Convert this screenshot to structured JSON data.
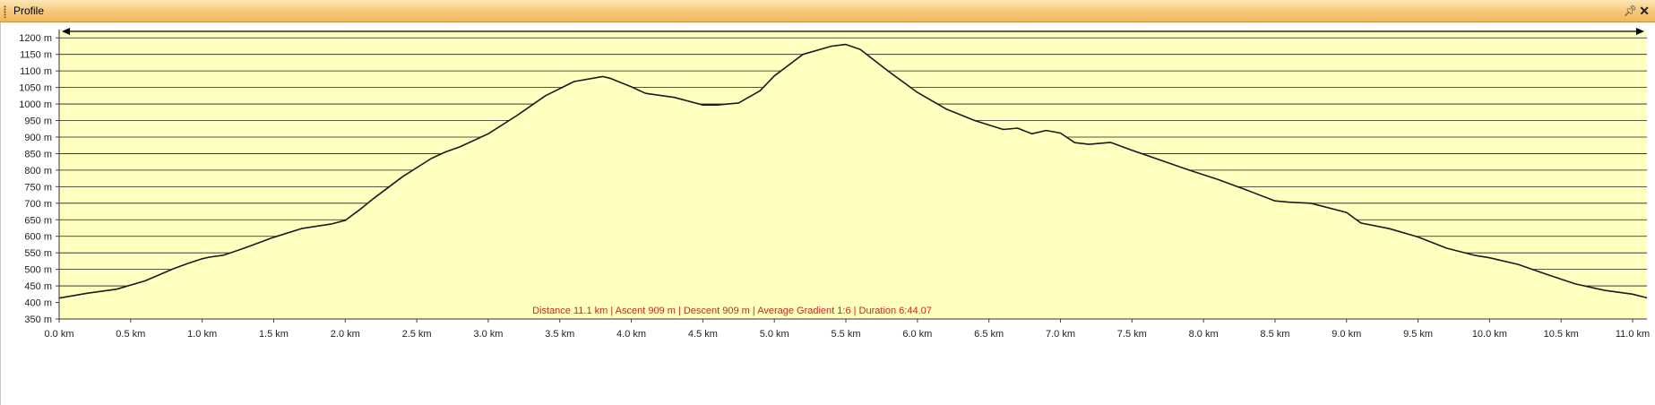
{
  "window": {
    "title": "Profile",
    "pin_icon": "pin-icon",
    "close_icon": "close-icon"
  },
  "chart_data": {
    "type": "area",
    "title": "",
    "xlabel": "",
    "ylabel": "",
    "xlim": [
      0,
      11.1
    ],
    "ylim": [
      350,
      1225
    ],
    "grid": true,
    "fill_color": "#ffffc0",
    "line_color": "#1a1a1a",
    "x_tick_labels": [
      "0.0 km",
      "0.5 km",
      "1.0 km",
      "1.5 km",
      "2.0 km",
      "2.5 km",
      "3.0 km",
      "3.5 km",
      "4.0 km",
      "4.5 km",
      "5.0 km",
      "5.5 km",
      "6.0 km",
      "6.5 km",
      "7.0 km",
      "7.5 km",
      "8.0 km",
      "8.5 km",
      "9.0 km",
      "9.5 km",
      "10.0 km",
      "10.5 km",
      "11.0 km"
    ],
    "y_tick_labels": [
      "350 m",
      "400 m",
      "450 m",
      "500 m",
      "550 m",
      "600 m",
      "650 m",
      "700 m",
      "750 m",
      "800 m",
      "850 m",
      "900 m",
      "950 m",
      "1000 m",
      "1050 m",
      "1100 m",
      "1150 m",
      "1200 m"
    ],
    "x": [
      0,
      0.2,
      0.4,
      0.6,
      0.8,
      0.9,
      1.0,
      1.05,
      1.15,
      1.3,
      1.5,
      1.7,
      1.9,
      2.0,
      2.1,
      2.2,
      2.4,
      2.6,
      2.7,
      2.8,
      3.0,
      3.2,
      3.4,
      3.6,
      3.8,
      3.85,
      4.0,
      4.1,
      4.3,
      4.5,
      4.6,
      4.75,
      4.9,
      5.0,
      5.2,
      5.4,
      5.5,
      5.6,
      5.8,
      6.0,
      6.2,
      6.4,
      6.6,
      6.7,
      6.8,
      6.9,
      7.0,
      7.1,
      7.2,
      7.35,
      7.5,
      7.7,
      7.9,
      8.1,
      8.3,
      8.5,
      8.6,
      8.75,
      9.0,
      9.1,
      9.3,
      9.5,
      9.7,
      9.9,
      10.0,
      10.2,
      10.4,
      10.6,
      10.8,
      11.0,
      11.1
    ],
    "series": [
      {
        "values": [
          413,
          428,
          440,
          465,
          502,
          518,
          532,
          537,
          543,
          565,
          597,
          624,
          637,
          648,
          680,
          715,
          780,
          835,
          855,
          870,
          910,
          965,
          1025,
          1068,
          1083,
          1078,
          1052,
          1032,
          1020,
          997,
          997,
          1003,
          1040,
          1085,
          1150,
          1175,
          1180,
          1165,
          1098,
          1035,
          985,
          950,
          923,
          927,
          910,
          920,
          912,
          883,
          878,
          884,
          860,
          830,
          800,
          772,
          740,
          707,
          703,
          700,
          672,
          640,
          623,
          598,
          564,
          542,
          535,
          515,
          485,
          456,
          437,
          425,
          414
        ]
      }
    ],
    "annotation": "Distance 11.1 km | Ascent 909 m | Descent 909 m | Average Gradient 1:6 | Duration 6:44.07"
  }
}
